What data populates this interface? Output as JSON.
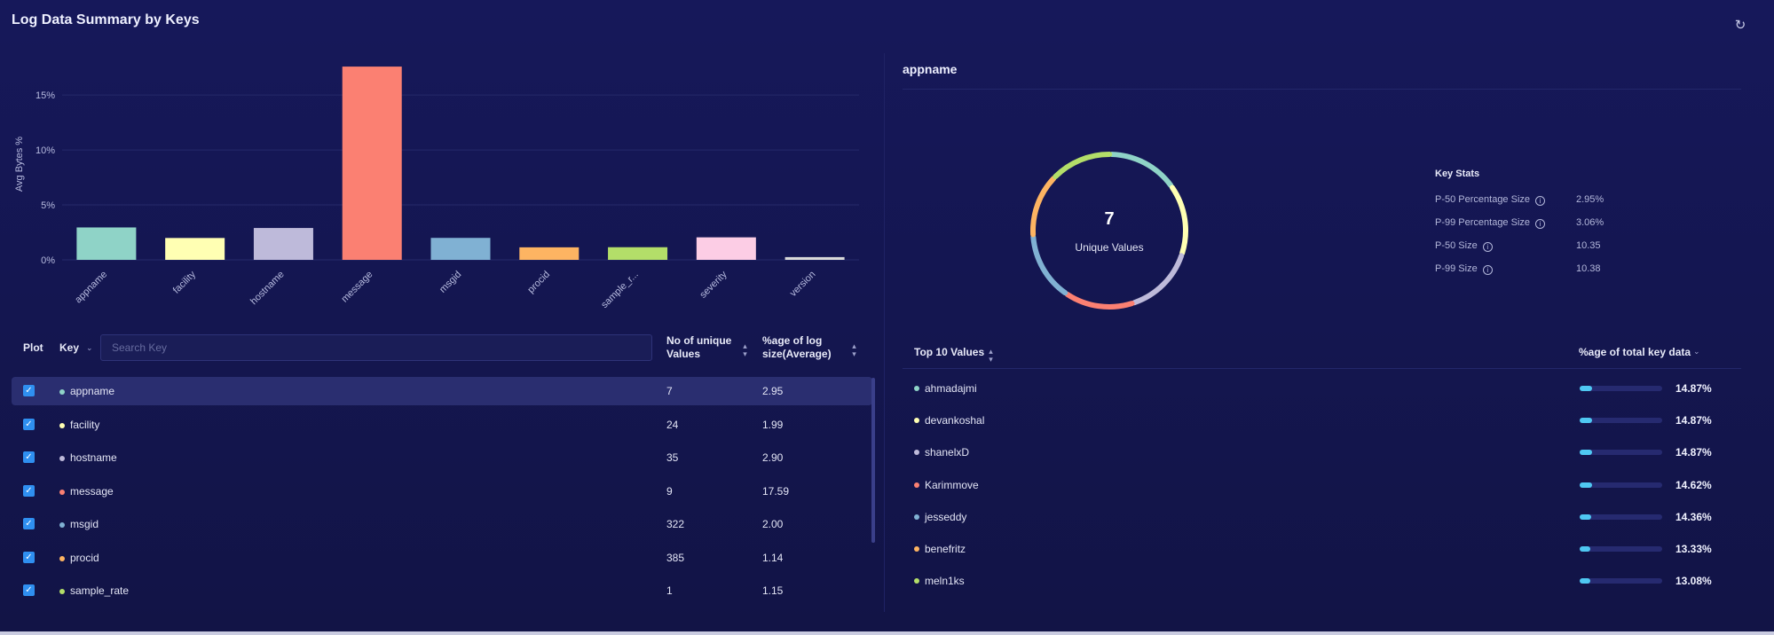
{
  "header": {
    "title": "Log Data Summary by Keys",
    "refresh_icon": "refresh-icon"
  },
  "chart_data": {
    "type": "bar",
    "ylabel": "Avg Bytes %",
    "categories": [
      "appname",
      "facility",
      "hostname",
      "message",
      "msgid",
      "procid",
      "sample_r...",
      "severity",
      "version"
    ],
    "values": [
      2.95,
      1.99,
      2.9,
      17.59,
      2.0,
      1.14,
      1.15,
      2.05,
      0.25
    ],
    "colors": [
      "#8fd3c7",
      "#ffffb3",
      "#bebada",
      "#fb8072",
      "#80b1d3",
      "#fdb462",
      "#b3de69",
      "#fccde5",
      "#d9d9d9"
    ],
    "yticks": [
      "0%",
      "5%",
      "10%",
      "15%"
    ],
    "ylim": [
      0,
      18
    ],
    "grid": true
  },
  "table": {
    "headers": {
      "plot": "Plot",
      "key": "Key",
      "unique_1": "No of unique",
      "unique_2": "Values",
      "size_1": "%age of log",
      "size_2": "size(Average)"
    },
    "search_placeholder": "Search Key",
    "rows": [
      {
        "key": "appname",
        "color": "#8fd3c7",
        "unique": "7",
        "size": "2.95"
      },
      {
        "key": "facility",
        "color": "#ffffb3",
        "unique": "24",
        "size": "1.99"
      },
      {
        "key": "hostname",
        "color": "#bebada",
        "unique": "35",
        "size": "2.90"
      },
      {
        "key": "message",
        "color": "#fb8072",
        "unique": "9",
        "size": "17.59"
      },
      {
        "key": "msgid",
        "color": "#80b1d3",
        "unique": "322",
        "size": "2.00"
      },
      {
        "key": "procid",
        "color": "#fdb462",
        "unique": "385",
        "size": "1.14"
      },
      {
        "key": "sample_rate",
        "color": "#b3de69",
        "unique": "1",
        "size": "1.15"
      }
    ]
  },
  "detail": {
    "title": "appname",
    "donut": {
      "value": "7",
      "label": "Unique Values",
      "segments": [
        14.87,
        14.87,
        14.87,
        14.62,
        14.36,
        13.33,
        13.08
      ],
      "colors": [
        "#8fd3c7",
        "#ffffb3",
        "#bebada",
        "#fb8072",
        "#80b1d3",
        "#fdb462",
        "#b3de69"
      ]
    },
    "key_stats": {
      "title": "Key Stats",
      "items": [
        {
          "label": "P-50 Percentage Size",
          "value": "2.95%"
        },
        {
          "label": "P-99 Percentage Size",
          "value": "3.06%"
        },
        {
          "label": "P-50 Size",
          "value": "10.35"
        },
        {
          "label": "P-99 Size",
          "value": "10.38"
        }
      ]
    },
    "top_values": {
      "header_left": "Top 10 Values",
      "header_right": "%age of total key data",
      "items": [
        {
          "name": "ahmadajmi",
          "color": "#8fd3c7",
          "pct": "14.87%",
          "fraction": 0.1487
        },
        {
          "name": "devankoshal",
          "color": "#ffffb3",
          "pct": "14.87%",
          "fraction": 0.1487
        },
        {
          "name": "shanelxD",
          "color": "#bebada",
          "pct": "14.87%",
          "fraction": 0.1487
        },
        {
          "name": "Karimmove",
          "color": "#fb8072",
          "pct": "14.62%",
          "fraction": 0.1462
        },
        {
          "name": "jesseddy",
          "color": "#80b1d3",
          "pct": "14.36%",
          "fraction": 0.1436
        },
        {
          "name": "benefritz",
          "color": "#fdb462",
          "pct": "13.33%",
          "fraction": 0.1333
        },
        {
          "name": "meln1ks",
          "color": "#b3de69",
          "pct": "13.08%",
          "fraction": 0.1308
        }
      ]
    }
  }
}
